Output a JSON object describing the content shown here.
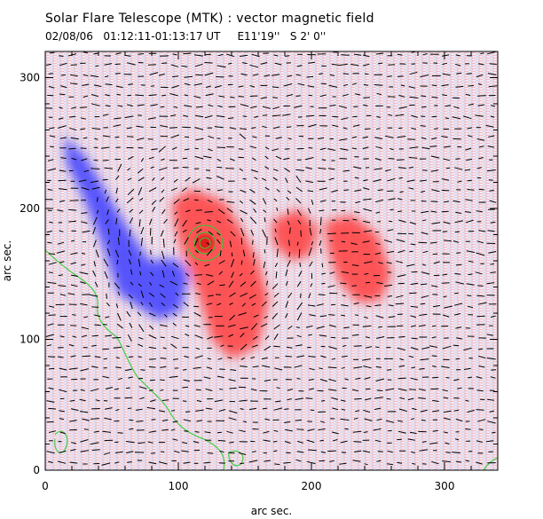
{
  "header": {
    "title": "Solar Flare Telescope (MTK) : vector magnetic field",
    "subtitle": "02/08/06   01:12:11-01:13:17 UT     E11'19''   S 2' 0''"
  },
  "axes": {
    "xlabel": "arc sec.",
    "ylabel": "arc sec.",
    "xlim": [
      0,
      340
    ],
    "ylim": [
      0,
      320
    ],
    "x_ticks": [
      "0",
      "100",
      "200",
      "300"
    ],
    "y_ticks": [
      "0",
      "100",
      "200",
      "300"
    ]
  },
  "colors": {
    "positive_polarity": "#ff3c3c",
    "negative_polarity": "#3c3cff",
    "contour": "#33cc33",
    "vector": "#000000"
  },
  "chart_data": {
    "type": "heatmap",
    "title": "Solar Flare Telescope (MTK) : vector magnetic field",
    "subtitle": "02/08/06   01:12:11-01:13:17 UT     E11'19''   S 2' 0''",
    "xlabel": "arc sec.",
    "ylabel": "arc sec.",
    "xlim": [
      0,
      340
    ],
    "ylim": [
      0,
      320
    ],
    "grid": false,
    "regions": [
      {
        "polarity": "negative",
        "points": [
          [
            14,
            255
          ],
          [
            30,
            240
          ],
          [
            50,
            205
          ],
          [
            62,
            185
          ],
          [
            78,
            160
          ],
          [
            98,
            162
          ],
          [
            108,
            150
          ],
          [
            102,
            122
          ],
          [
            85,
            115
          ],
          [
            70,
            125
          ],
          [
            55,
            135
          ],
          [
            42,
            175
          ],
          [
            28,
            210
          ],
          [
            16,
            235
          ]
        ]
      },
      {
        "polarity": "positive",
        "points": [
          [
            95,
            205
          ],
          [
            110,
            215
          ],
          [
            135,
            205
          ],
          [
            150,
            180
          ],
          [
            160,
            160
          ],
          [
            168,
            130
          ],
          [
            160,
            95
          ],
          [
            140,
            85
          ],
          [
            125,
            100
          ],
          [
            118,
            125
          ],
          [
            110,
            150
          ],
          [
            102,
            170
          ],
          [
            98,
            185
          ]
        ]
      },
      {
        "polarity": "positive",
        "points": [
          [
            170,
            190
          ],
          [
            190,
            200
          ],
          [
            205,
            185
          ],
          [
            200,
            165
          ],
          [
            185,
            160
          ],
          [
            172,
            172
          ]
        ]
      },
      {
        "polarity": "positive",
        "points": [
          [
            210,
            190
          ],
          [
            230,
            195
          ],
          [
            250,
            180
          ],
          [
            260,
            150
          ],
          [
            252,
            130
          ],
          [
            235,
            128
          ],
          [
            220,
            145
          ],
          [
            212,
            170
          ]
        ]
      }
    ],
    "sunspot_center": [
      120,
      170
    ]
  }
}
